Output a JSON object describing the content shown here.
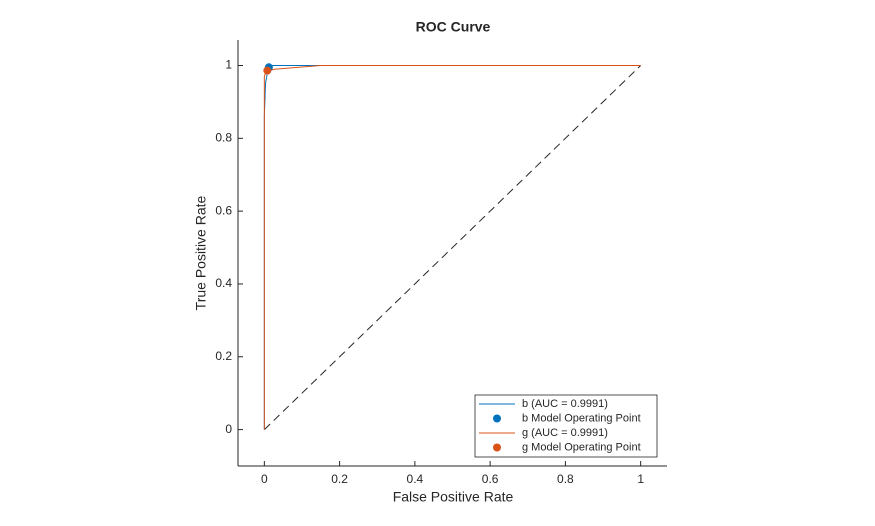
{
  "chart_data": {
    "type": "line",
    "title": "ROC Curve",
    "x_label": "False Positive Rate",
    "y_label": "True Positive Rate",
    "xlim": [
      -0.07,
      1.07
    ],
    "ylim": [
      -0.1,
      1.07
    ],
    "xticks": [
      0,
      0.2,
      0.4,
      0.6,
      0.8,
      1
    ],
    "yticks": [
      0,
      0.2,
      0.4,
      0.6,
      0.8,
      1
    ],
    "legend": "lower right",
    "series": [
      {
        "name": "b (AUC = 0.9991)",
        "color": "#0072bd",
        "x": [
          0,
          0,
          0.003,
          0.008,
          0.02,
          1
        ],
        "values": [
          0,
          0.86,
          0.95,
          0.98,
          1,
          1
        ]
      },
      {
        "name": "g (AUC = 0.9991)",
        "color": "#d95319",
        "x": [
          0,
          0,
          0.005,
          0.03,
          0.15,
          1
        ],
        "values": [
          0,
          0.97,
          0.985,
          0.99,
          1,
          1
        ]
      }
    ],
    "operating_points": [
      {
        "name": "b Model Operating Point",
        "color": "#0072bd",
        "x": 0.012,
        "y": 0.995
      },
      {
        "name": "g Model Operating Point",
        "color": "#d95319",
        "x": 0.008,
        "y": 0.986
      }
    ],
    "reference_line": {
      "x": [
        0,
        1
      ],
      "values": [
        0,
        1
      ]
    }
  }
}
